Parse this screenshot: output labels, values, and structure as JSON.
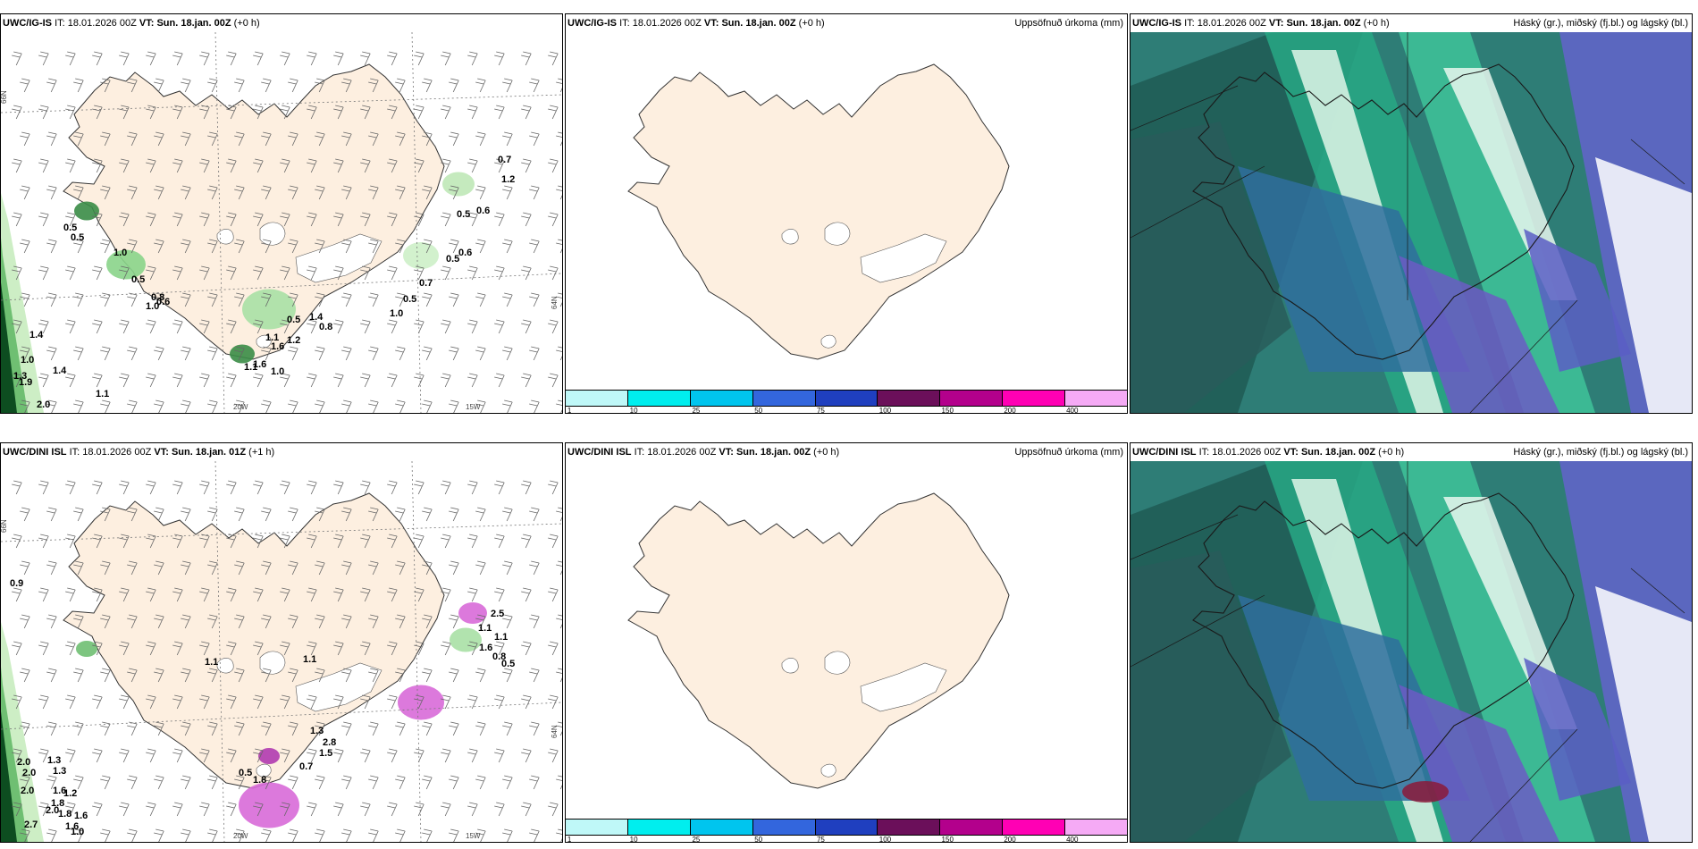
{
  "rows": [
    {
      "left": {
        "model": "UWC/IG-IS",
        "it_prefix": "IT:",
        "it_value": "18.01.2026 00Z",
        "vt_prefix": "VT:",
        "vt_value": "Sun. 18.jan. 00Z",
        "offset": "(+0 h)",
        "lon_labels": [
          "20W",
          "15W"
        ],
        "lat_labels": [
          "66N",
          "64N"
        ],
        "precip_labels": [
          "0.7",
          "1.2",
          "0.5",
          "0.6",
          "0.5",
          "0.6",
          "0.5",
          "0.5",
          "1.0",
          "0.5",
          "0.8",
          "1.0",
          "0.6",
          "0.7",
          "0.5",
          "1.0",
          "0.5",
          "1.4",
          "0.8",
          "1.6",
          "1.1",
          "1.2",
          "1.6",
          "1.0",
          "1.1",
          "1.4",
          "1.3",
          "1.9",
          "1.4",
          "1.1",
          "2.0",
          "1.0"
        ]
      },
      "middle": {
        "model": "UWC/IG-IS",
        "it_prefix": "IT:",
        "it_value": "18.01.2026 00Z",
        "vt_prefix": "VT:",
        "vt_value": "Sun. 18.jan. 00Z",
        "offset": "(+0 h)",
        "title": "Uppsöfnuð úrkoma (mm)"
      },
      "right": {
        "model": "UWC/IG-IS",
        "it_prefix": "IT:",
        "it_value": "18.01.2026 00Z",
        "vt_prefix": "VT:",
        "vt_value": "Sun. 18.jan. 00Z",
        "offset": "(+0 h)",
        "title": "Háský (gr.), miðský (fj.bl.) og lágský (bl.)"
      }
    },
    {
      "left": {
        "model": "UWC/DINI ISL",
        "it_prefix": "IT:",
        "it_value": "18.01.2026 00Z",
        "vt_prefix": "VT:",
        "vt_value": "Sun. 18.jan. 01Z",
        "offset": "(+1 h)",
        "lon_labels": [
          "20W",
          "15W"
        ],
        "lat_labels": [
          "66N",
          "64N"
        ],
        "precip_labels": [
          "0.9",
          "1.1",
          "1.1",
          "2.5",
          "1.1",
          "1.6",
          "0.8",
          "0.5",
          "1.1",
          "1.3",
          "1.5",
          "2.8",
          "0.7",
          "0.5",
          "1.8",
          "2.0",
          "2.0",
          "1.3",
          "1.3",
          "2.0",
          "1.6",
          "1.8",
          "1.2",
          "2.0",
          "1.8",
          "2.7",
          "1.6",
          "1.6",
          "1.0"
        ]
      },
      "middle": {
        "model": "UWC/DINI ISL",
        "it_prefix": "IT:",
        "it_value": "18.01.2026 00Z",
        "vt_prefix": "VT:",
        "vt_value": "Sun. 18.jan. 00Z",
        "offset": "(+0 h)",
        "title": "Uppsöfnuð úrkoma (mm)"
      },
      "right": {
        "model": "UWC/DINI ISL",
        "it_prefix": "IT:",
        "it_value": "18.01.2026 00Z",
        "vt_prefix": "VT:",
        "vt_value": "Sun. 18.jan. 00Z",
        "offset": "(+0 h)",
        "title": "Háský (gr.), miðský (fj.bl.) og lágský (bl.)"
      }
    }
  ],
  "colorbar": {
    "labels": [
      "1",
      "10",
      "25",
      "50",
      "75",
      "100",
      "150",
      "200",
      "400"
    ],
    "colors": [
      "#bff8f8",
      "#00eeee",
      "#00c5ee",
      "#3366dd",
      "#1f3fbf",
      "#6b0f5a",
      "#b3008c",
      "#ff00b4",
      "#f5aaf5"
    ]
  },
  "colors": {
    "land": "#fdefe0",
    "precip_light": "#cdf0c8",
    "precip_dark": "#0d4d20",
    "high_cloud": "#17ab84",
    "mid_cloud": "#5a55c0",
    "low_cloud": "#2a6a8a"
  }
}
